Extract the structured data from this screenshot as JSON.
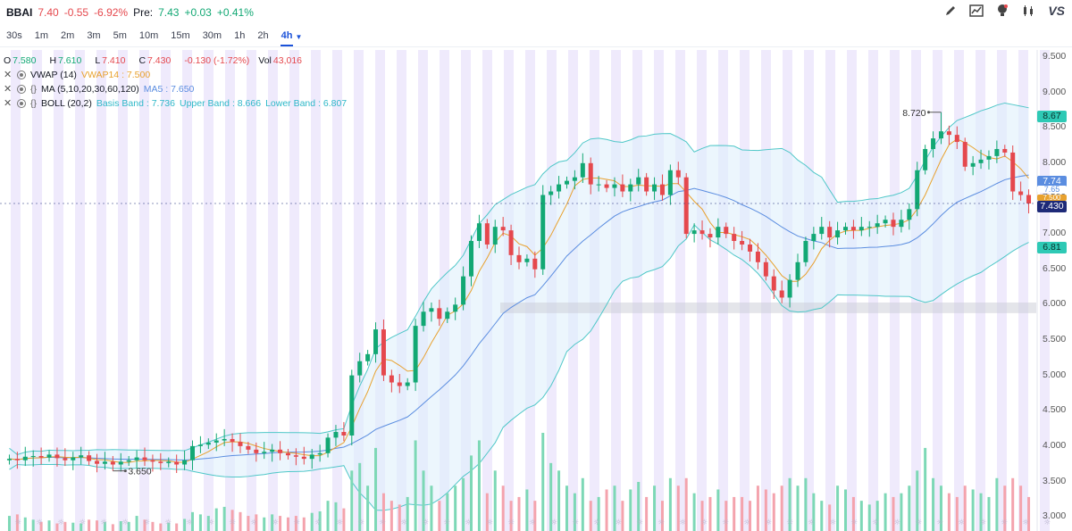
{
  "header": {
    "symbol": "BBAI",
    "price": "7.40",
    "change": "-0.55",
    "change_pct": "-6.92%",
    "pre_label": "Pre:",
    "pre_price": "7.43",
    "pre_change": "+0.03",
    "pre_change_pct": "+0.41%",
    "brand": "VS",
    "icons": [
      "pencil-icon",
      "chart-line-icon",
      "lightbulb-icon",
      "candlestick-icon"
    ]
  },
  "timeframes": [
    "30s",
    "1m",
    "2m",
    "3m",
    "5m",
    "10m",
    "15m",
    "30m",
    "1h",
    "2h",
    "4h"
  ],
  "active_timeframe": "4h",
  "legend": {
    "ohlc": {
      "o_label": "O",
      "o": "7.580",
      "h_label": "H",
      "h": "7.610",
      "l_label": "L",
      "l": "7.410",
      "c_label": "C",
      "c": "7.430",
      "chg": "-0.130 (-1.72%)",
      "vol_label": "Vol",
      "vol": "43,016"
    },
    "vwap_name": "VWAP (14)",
    "vwap_value": "VWAP14 : 7.500",
    "ma_name": "MA (5,10,20,30,60,120)",
    "ma_value": "MA5 : 7.650",
    "boll_name": "BOLL (20,2)",
    "boll_basis": "Basis Band : 7.736",
    "boll_upper": "Upper Band : 8.666",
    "boll_lower": "Lower Band : 6.807"
  },
  "annotations": {
    "high": "8.720",
    "low": "3.650"
  },
  "price_tags": {
    "upper": "8.67",
    "basis": "7.74",
    "ma": "7.65",
    "vwap": "7.500",
    "last": "7.430",
    "lower": "6.81"
  },
  "colors": {
    "up": "#12a874",
    "down": "#e5484d",
    "band": "#4fc7c8",
    "fill": "#dceefc",
    "session": "#efeafc",
    "basis": "#5b8de0",
    "vwap": "#e8a12e",
    "accent": "#1b52d9"
  },
  "chart_data": {
    "type": "candlestick",
    "y_ticks": [
      "9.500",
      "9.000",
      "8.500",
      "8.000",
      "7.500",
      "7.000",
      "6.500",
      "6.000",
      "5.500",
      "5.000",
      "4.500",
      "4.000",
      "3.500",
      "3.000"
    ],
    "ylim": [
      2.8,
      9.6
    ],
    "period_high": 8.72,
    "period_low": 3.65,
    "close": [
      3.82,
      3.8,
      3.85,
      3.86,
      3.84,
      3.88,
      3.83,
      3.8,
      3.84,
      3.87,
      3.79,
      3.75,
      3.78,
      3.74,
      3.78,
      3.8,
      3.84,
      3.8,
      3.78,
      3.76,
      3.78,
      3.74,
      3.8,
      4.0,
      4.02,
      4.05,
      4.08,
      4.1,
      4.06,
      4.0,
      3.95,
      3.9,
      3.92,
      3.95,
      3.9,
      3.87,
      3.85,
      3.82,
      3.88,
      3.9,
      4.12,
      4.2,
      4.15,
      5.0,
      5.2,
      5.3,
      5.65,
      5.0,
      4.9,
      4.85,
      4.9,
      5.7,
      5.9,
      5.95,
      5.8,
      5.9,
      6.0,
      6.4,
      6.9,
      7.15,
      6.85,
      7.1,
      7.05,
      6.7,
      6.6,
      6.65,
      6.5,
      7.55,
      7.6,
      7.7,
      7.75,
      7.8,
      8.0,
      7.7,
      7.7,
      7.65,
      7.7,
      7.6,
      7.7,
      7.8,
      7.6,
      7.7,
      7.55,
      7.9,
      7.8,
      7.0,
      7.05,
      7.0,
      6.95,
      7.1,
      7.0,
      6.9,
      6.85,
      6.75,
      6.6,
      6.4,
      6.2,
      6.1,
      6.35,
      6.6,
      6.9,
      7.0,
      7.1,
      6.95,
      7.05,
      7.1,
      7.05,
      7.1,
      7.1,
      7.15,
      7.2,
      7.1,
      7.2,
      7.35,
      7.9,
      8.2,
      8.35,
      8.45,
      8.4,
      8.3,
      7.95,
      8.0,
      8.05,
      8.1,
      8.2,
      8.15,
      7.6,
      7.55,
      7.43
    ],
    "volume": [
      20,
      22,
      18,
      15,
      12,
      14,
      10,
      12,
      11,
      10,
      15,
      14,
      12,
      9,
      13,
      12,
      20,
      15,
      12,
      10,
      11,
      10,
      16,
      25,
      22,
      20,
      30,
      32,
      28,
      25,
      20,
      22,
      18,
      22,
      20,
      18,
      20,
      18,
      24,
      26,
      40,
      38,
      30,
      80,
      90,
      60,
      110,
      50,
      40,
      35,
      45,
      120,
      80,
      60,
      40,
      50,
      60,
      70,
      100,
      120,
      50,
      80,
      60,
      40,
      45,
      55,
      40,
      130,
      90,
      80,
      60,
      50,
      70,
      40,
      45,
      55,
      60,
      40,
      55,
      65,
      45,
      60,
      40,
      70,
      60,
      70,
      50,
      40,
      45,
      55,
      40,
      45,
      45,
      40,
      60,
      55,
      50,
      60,
      70,
      60,
      70,
      50,
      40,
      35,
      60,
      55,
      45,
      40,
      35,
      40,
      50,
      45,
      50,
      60,
      80,
      110,
      70,
      60,
      50,
      45,
      60,
      55,
      50,
      45,
      70,
      60,
      70,
      60,
      45
    ]
  }
}
